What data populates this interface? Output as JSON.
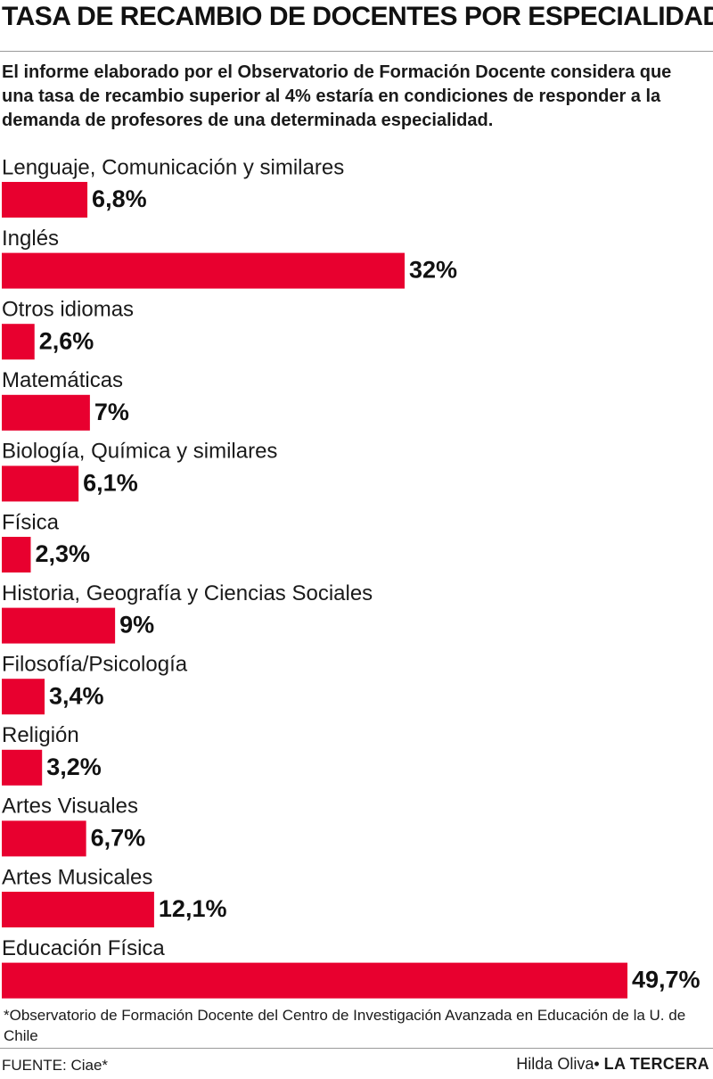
{
  "header": {
    "title": "TASA DE RECAMBIO DE DOCENTES POR ESPECIALIDAD",
    "intro": "El informe elaborado por el Observatorio de Formación Docente considera que una tasa de recambio superior al 4% estaría en condiciones de responder a la demanda de profesores de una determinada especialidad."
  },
  "chart_data": {
    "type": "bar",
    "orientation": "horizontal",
    "title": "TASA DE RECAMBIO DE DOCENTES POR ESPECIALIDAD",
    "categories": [
      "Lenguaje, Comunicación y similares",
      "Inglés",
      "Otros idiomas",
      "Matemáticas",
      "Biología, Química y similares",
      "Física",
      "Historia, Geografía y Ciencias Sociales",
      "Filosofía/Psicología",
      "Religión",
      "Artes Visuales",
      "Artes Musicales",
      "Educación Física"
    ],
    "values": [
      6.8,
      32,
      2.6,
      7,
      6.1,
      2.3,
      9,
      3.4,
      3.2,
      6.7,
      12.1,
      49.7
    ],
    "value_labels": [
      "6,8%",
      "32%",
      "2,6%",
      "7%",
      "6,1%",
      "2,3%",
      "9%",
      "3,4%",
      "3,2%",
      "6,7%",
      "12,1%",
      "49,7%"
    ],
    "unit": "%",
    "bar_color": "#e8002f",
    "xlim": [
      0,
      49.7
    ],
    "grid": false,
    "legend": "none"
  },
  "footer": {
    "note": "*Observatorio de Formación Docente del Centro de Investigación Avanzada en Educación de la U. de Chile",
    "source": "FUENTE: Ciae*",
    "author": "Hilda Oliva",
    "separator": "•",
    "brand": "LA TERCERA"
  }
}
